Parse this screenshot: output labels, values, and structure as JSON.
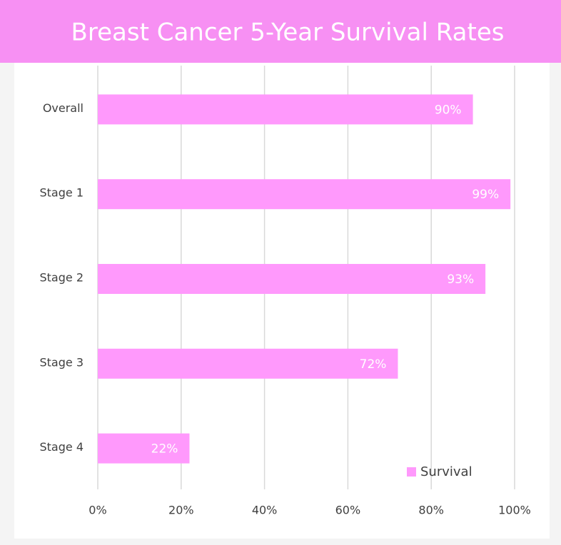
{
  "chart_data": {
    "type": "bar",
    "orientation": "horizontal",
    "title": "Breast Cancer 5-Year Survival Rates",
    "categories": [
      "Overall",
      "Stage 1",
      "Stage 2",
      "Stage 3",
      "Stage 4"
    ],
    "series": [
      {
        "name": "Survival",
        "color": "#ff99fc",
        "values": [
          90,
          99,
          93,
          72,
          22
        ],
        "value_labels": [
          "90%",
          "99%",
          "93%",
          "72%",
          "22%"
        ]
      }
    ],
    "xlim": [
      0,
      100
    ],
    "xticks": [
      {
        "value": 0,
        "label": "0%"
      },
      {
        "value": 20,
        "label": "20%"
      },
      {
        "value": 40,
        "label": "40%"
      },
      {
        "value": 60,
        "label": "60%"
      },
      {
        "value": 80,
        "label": "80%"
      },
      {
        "value": 100,
        "label": "100%"
      }
    ],
    "grid": true,
    "legend": "lower right",
    "title_background": "#f790f3"
  }
}
